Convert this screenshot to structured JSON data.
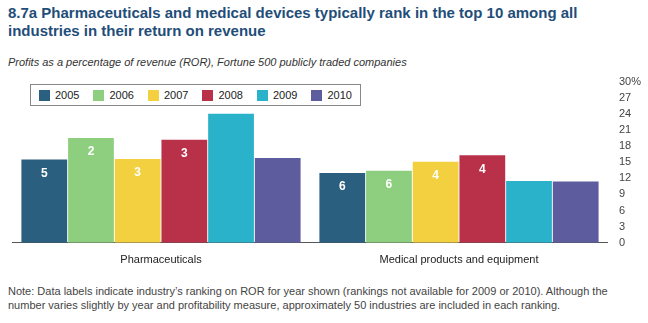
{
  "chart_data": {
    "type": "bar",
    "title": "8.7a Pharmaceuticals and medical devices typically rank in the top 10 among all industries in their return on revenue",
    "subtitle": "Profits as a percentage of revenue (ROR), Fortune 500 publicly traded companies",
    "note": "Note: Data labels indicate industry’s ranking on ROR for year shown (rankings not available for 2009 or 2010). Although the number varies slightly by year and profitability measure, approximately 50 industries are included in each ranking.",
    "categories": [
      "Pharmaceuticals",
      "Medical products and equipment"
    ],
    "series": [
      {
        "name": "2005",
        "color": "#2b5f7f",
        "values": [
          15.5,
          13.0
        ],
        "rankings": [
          5,
          6
        ]
      },
      {
        "name": "2006",
        "color": "#8dcf7f",
        "values": [
          19.5,
          13.4
        ],
        "rankings": [
          2,
          6
        ]
      },
      {
        "name": "2007",
        "color": "#f2d03f",
        "values": [
          15.6,
          15.1
        ],
        "rankings": [
          3,
          4
        ]
      },
      {
        "name": "2008",
        "color": "#b83149",
        "values": [
          19.2,
          16.3
        ],
        "rankings": [
          3,
          4
        ]
      },
      {
        "name": "2009",
        "color": "#2ab2ca",
        "values": [
          24.0,
          11.5
        ],
        "rankings": [
          null,
          null
        ]
      },
      {
        "name": "2010",
        "color": "#5d5c9e",
        "values": [
          15.8,
          11.4
        ],
        "rankings": [
          null,
          null
        ]
      }
    ],
    "ylim": [
      0,
      30
    ],
    "yticks": [
      0,
      3,
      6,
      9,
      12,
      15,
      18,
      21,
      24,
      27,
      {
        "value": 30,
        "label": "30%"
      }
    ],
    "grid": false,
    "legend": "top-left"
  }
}
